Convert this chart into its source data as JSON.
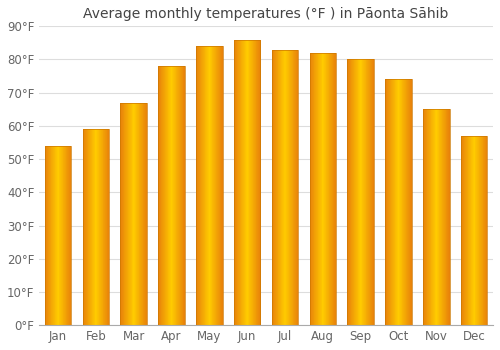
{
  "title": "Average monthly temperatures (°F ) in Pāonta Sāhib",
  "months": [
    "Jan",
    "Feb",
    "Mar",
    "Apr",
    "May",
    "Jun",
    "Jul",
    "Aug",
    "Sep",
    "Oct",
    "Nov",
    "Dec"
  ],
  "values": [
    54,
    59,
    67,
    78,
    84,
    86,
    83,
    82,
    80,
    74,
    65,
    57
  ],
  "ylim": [
    0,
    90
  ],
  "yticks": [
    0,
    10,
    20,
    30,
    40,
    50,
    60,
    70,
    80,
    90
  ],
  "ytick_labels": [
    "0°F",
    "10°F",
    "20°F",
    "30°F",
    "40°F",
    "50°F",
    "60°F",
    "70°F",
    "80°F",
    "90°F"
  ],
  "bar_color_left": "#E8820A",
  "bar_color_center": "#FFCC00",
  "bar_color_right": "#E8820A",
  "background_color": "#ffffff",
  "plot_bg_color": "#ffffff",
  "grid_color": "#dddddd",
  "title_fontsize": 10,
  "tick_fontsize": 8.5,
  "title_color": "#444444",
  "tick_color": "#666666"
}
